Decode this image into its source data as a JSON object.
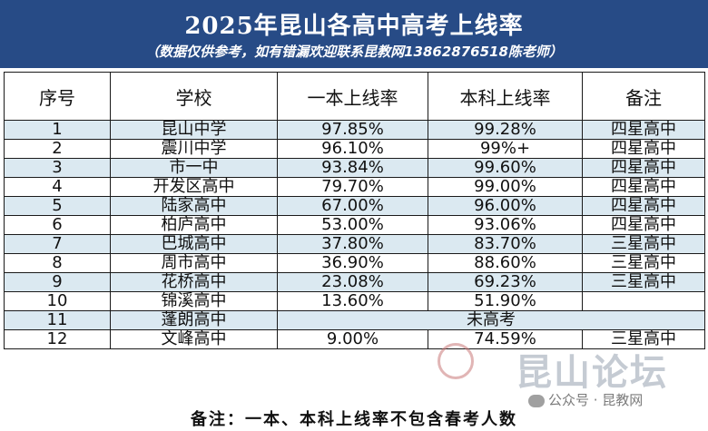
{
  "header": {
    "title": "2025年昆山各高中高考上线率",
    "subtitle": "（数据仅供参考，如有错漏欢迎联系昆教网13862876518陈老师）"
  },
  "table": {
    "columns": [
      "序号",
      "学校",
      "一本上线率",
      "本科上线率",
      "备注"
    ],
    "rows": [
      {
        "no": "1",
        "school": "昆山中学",
        "tier1": "97.85%",
        "bachelor": "99.28%",
        "note": "四星高中"
      },
      {
        "no": "2",
        "school": "震川中学",
        "tier1": "96.10%",
        "bachelor": "99%+",
        "note": "四星高中"
      },
      {
        "no": "3",
        "school": "市一中",
        "tier1": "93.84%",
        "bachelor": "99.60%",
        "note": "四星高中"
      },
      {
        "no": "4",
        "school": "开发区高中",
        "tier1": "79.70%",
        "bachelor": "99.00%",
        "note": "四星高中"
      },
      {
        "no": "5",
        "school": "陆家高中",
        "tier1": "67.00%",
        "bachelor": "96.00%",
        "note": "四星高中"
      },
      {
        "no": "6",
        "school": "柏庐高中",
        "tier1": "53.00%",
        "bachelor": "93.06%",
        "note": "四星高中"
      },
      {
        "no": "7",
        "school": "巴城高中",
        "tier1": "37.80%",
        "bachelor": "83.70%",
        "note": "三星高中"
      },
      {
        "no": "8",
        "school": "周市高中",
        "tier1": "36.90%",
        "bachelor": "88.60%",
        "note": "三星高中"
      },
      {
        "no": "9",
        "school": "花桥高中",
        "tier1": "23.08%",
        "bachelor": "69.23%",
        "note": "三星高中"
      },
      {
        "no": "10",
        "school": "锦溪高中",
        "tier1": "13.60%",
        "bachelor": "51.90%",
        "note": ""
      },
      {
        "no": "11",
        "school": "蓬朗高中",
        "merged": "未高考"
      },
      {
        "no": "12",
        "school": "文峰高中",
        "tier1": "9.00%",
        "bachelor": "74.59%",
        "note": "三星高中"
      }
    ]
  },
  "footer": {
    "text": "备注：一本、本科上线率不包含春考人数"
  },
  "watermark": {
    "logo_text": "昆山论坛",
    "social_text": "公众号 · 昆教网"
  }
}
